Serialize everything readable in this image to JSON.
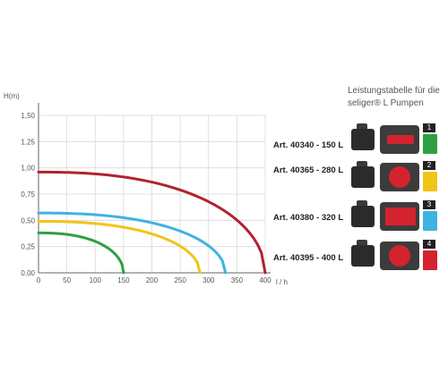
{
  "chart_data": {
    "type": "line",
    "ylabel": "H(m)",
    "xlabel": "l / h",
    "xlim": [
      0,
      400
    ],
    "ylim": [
      0,
      1.5
    ],
    "x_ticks": [
      "0",
      "50",
      "100",
      "150",
      "200",
      "250",
      "300",
      "350",
      "400"
    ],
    "y_ticks": [
      "0,00",
      "0,25",
      "0,50",
      "0,75",
      "1,00",
      "1,25",
      "1,50"
    ],
    "x_tick_values": [
      0,
      50,
      100,
      150,
      200,
      250,
      300,
      350,
      400
    ],
    "y_tick_values": [
      0,
      0.25,
      0.5,
      0.75,
      1.0,
      1.25,
      1.5
    ],
    "grid": true,
    "series": [
      {
        "name": "Art. 40340 - 150 L",
        "color": "#2ea043",
        "max_flow": 150,
        "max_head": 0.38
      },
      {
        "name": "Art. 40365 - 280 L",
        "color": "#f2c418",
        "max_flow": 285,
        "max_head": 0.49
      },
      {
        "name": "Art. 40380 - 320 L",
        "color": "#3db4e0",
        "max_flow": 330,
        "max_head": 0.57
      },
      {
        "name": "Art. 40395 - 400 L",
        "color": "#b0222e",
        "max_flow": 400,
        "max_head": 0.96
      }
    ]
  },
  "panel": {
    "title": "Leistungstabelle für die seliger® L Pumpen",
    "rows": [
      {
        "badge": "1",
        "color": "#2ea043"
      },
      {
        "badge": "2",
        "color": "#f2c418"
      },
      {
        "badge": "3",
        "color": "#3db4e0"
      },
      {
        "badge": "4",
        "color": "#d3232f"
      }
    ]
  }
}
